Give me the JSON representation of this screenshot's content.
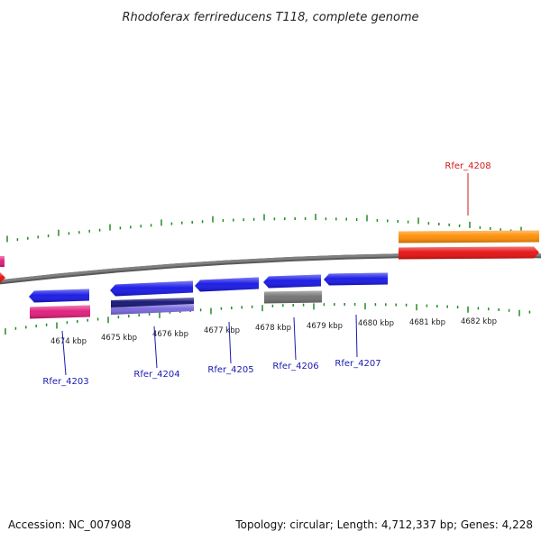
{
  "title": "Rhodoferax ferrireducens T118, complete genome",
  "footer": {
    "accession": "Accession: NC_007908",
    "topology": "Topology: circular; Length: 4,712,337 bp; Genes: 4,228"
  },
  "colors": {
    "backbone": "#808080",
    "ticks": "#228b22",
    "label_blue": "#1a1ab0",
    "label_red": "#d11a1a",
    "gene_blue": "#1414e6",
    "gene_red": "#e60d0d",
    "gene_orange": "#ff8c00",
    "gene_pink": "#e0197a",
    "gene_navy": "#101070",
    "gene_lavender": "#7766dd",
    "gene_gray": "#707070"
  },
  "kbp_labels": [
    "4674 kbp",
    "4675 kbp",
    "4676 kbp",
    "4677 kbp",
    "4678 kbp",
    "4679 kbp",
    "4680 kbp",
    "4681 kbp",
    "4682 kbp"
  ],
  "gene_labels": [
    {
      "id": "Rfer_4203",
      "color": "label_blue"
    },
    {
      "id": "Rfer_4204",
      "color": "label_blue"
    },
    {
      "id": "Rfer_4205",
      "color": "label_blue"
    },
    {
      "id": "Rfer_4206",
      "color": "label_blue"
    },
    {
      "id": "Rfer_4207",
      "color": "label_blue"
    },
    {
      "id": "Rfer_4208",
      "color": "label_red"
    }
  ]
}
